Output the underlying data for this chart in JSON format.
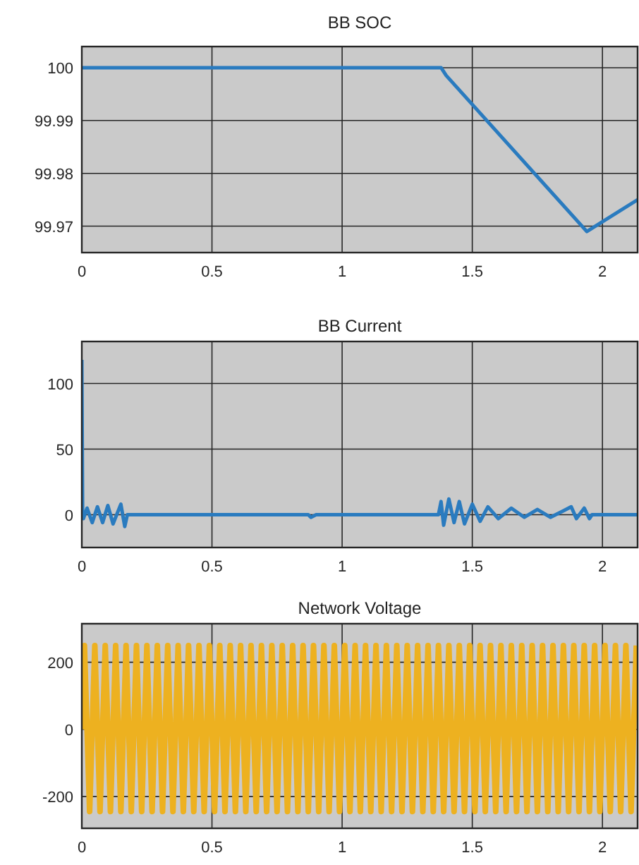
{
  "chart_data": [
    {
      "type": "line",
      "title": "BB SOC",
      "xlim": [
        0,
        2.135
      ],
      "xticks": [
        0,
        0.5,
        1,
        1.5,
        2
      ],
      "ylim": [
        99.965,
        100.004
      ],
      "yticks": [
        99.97,
        99.98,
        99.99,
        100
      ],
      "grid": true,
      "series": [
        {
          "color": "#2a7bbf",
          "x": [
            0,
            1.38,
            1.4,
            1.94,
            2.135
          ],
          "values": [
            100,
            100,
            99.9985,
            99.969,
            99.975
          ]
        }
      ]
    },
    {
      "type": "line",
      "title": "BB Current",
      "xlim": [
        0,
        2.135
      ],
      "xticks": [
        0,
        0.5,
        1,
        1.5,
        2
      ],
      "ylim": [
        -25,
        132
      ],
      "yticks": [
        0,
        50,
        100
      ],
      "grid": true,
      "series": [
        {
          "color": "#2a7bbf",
          "x": [
            0,
            0.003,
            0.006,
            0.02,
            0.04,
            0.06,
            0.08,
            0.1,
            0.12,
            0.15,
            0.165,
            0.175,
            0.5,
            0.87,
            0.88,
            0.9,
            1.37,
            1.38,
            1.39,
            1.41,
            1.43,
            1.45,
            1.47,
            1.5,
            1.53,
            1.56,
            1.6,
            1.65,
            1.7,
            1.75,
            1.8,
            1.85,
            1.88,
            1.9,
            1.93,
            1.95,
            1.96,
            2.135
          ],
          "values": [
            118,
            0,
            -3,
            5,
            -6,
            6,
            -6,
            7,
            -7,
            8,
            -9,
            0,
            0,
            0,
            -2,
            0,
            0,
            10,
            -8,
            12,
            -6,
            10,
            -7,
            8,
            -5,
            6,
            -3,
            5,
            -2,
            4,
            -2,
            3,
            6,
            -3,
            5,
            -3,
            0,
            0
          ]
        }
      ]
    },
    {
      "type": "line",
      "title": "Network Voltage",
      "xlim": [
        0,
        2.135
      ],
      "xticks": [
        0,
        0.5,
        1,
        1.5,
        2
      ],
      "ylim": [
        -295,
        315
      ],
      "yticks": [
        -200,
        0,
        200
      ],
      "grid": true,
      "series": [
        {
          "color": "#edb120",
          "x": [
            0,
            0.01,
            0.03,
            0.05,
            0.07,
            0.09,
            0.11,
            0.13,
            0.15,
            0.17,
            0.19,
            0.21,
            0.23,
            0.25,
            0.27,
            0.29,
            0.31,
            0.33,
            0.35,
            0.37,
            0.39,
            0.41,
            0.43,
            0.45,
            0.47,
            0.49,
            0.51,
            0.53,
            0.55,
            0.57,
            0.59,
            0.61,
            0.63,
            0.65,
            0.67,
            0.69,
            0.71,
            0.73,
            0.75,
            0.77,
            0.79,
            0.81,
            0.83,
            0.85,
            0.87,
            0.89,
            0.91,
            0.93,
            0.95,
            0.97,
            0.99,
            1.01,
            1.03,
            1.05,
            1.07,
            1.09,
            1.11,
            1.13,
            1.15,
            1.17,
            1.19,
            1.21,
            1.23,
            1.25,
            1.27,
            1.29,
            1.31,
            1.33,
            1.35,
            1.37,
            1.39,
            1.41,
            1.43,
            1.45,
            1.47,
            1.49,
            1.51,
            1.53,
            1.55,
            1.57,
            1.59,
            1.61,
            1.63,
            1.65,
            1.67,
            1.69,
            1.71,
            1.73,
            1.75,
            1.77,
            1.79,
            1.81,
            1.83,
            1.85,
            1.87,
            1.89,
            1.91,
            1.93,
            1.95,
            1.97,
            1.99,
            2.01,
            2.03,
            2.05,
            2.07,
            2.09,
            2.11,
            2.13
          ],
          "values": [
            0,
            250,
            -245,
            250,
            -245,
            250,
            -245,
            250,
            -245,
            250,
            -245,
            250,
            -245,
            250,
            -245,
            250,
            -245,
            250,
            -245,
            250,
            -245,
            250,
            -245,
            250,
            -245,
            250,
            -245,
            250,
            -245,
            250,
            -245,
            250,
            -245,
            250,
            -245,
            250,
            -245,
            250,
            -245,
            250,
            -245,
            250,
            -245,
            250,
            -245,
            250,
            -245,
            250,
            -245,
            250,
            -245,
            250,
            -245,
            250,
            -245,
            250,
            -245,
            250,
            -245,
            250,
            -245,
            250,
            -245,
            250,
            -245,
            250,
            -245,
            250,
            -245,
            250,
            -245,
            250,
            -245,
            250,
            -245,
            250,
            -245,
            250,
            -245,
            250,
            -245,
            250,
            -245,
            250,
            -245,
            250,
            -245,
            250,
            -245,
            250,
            -245,
            250,
            -245,
            250,
            -245,
            250,
            -245,
            250,
            -245,
            250,
            -245,
            250,
            -245,
            250,
            -245,
            250,
            -245,
            250
          ]
        }
      ]
    }
  ]
}
